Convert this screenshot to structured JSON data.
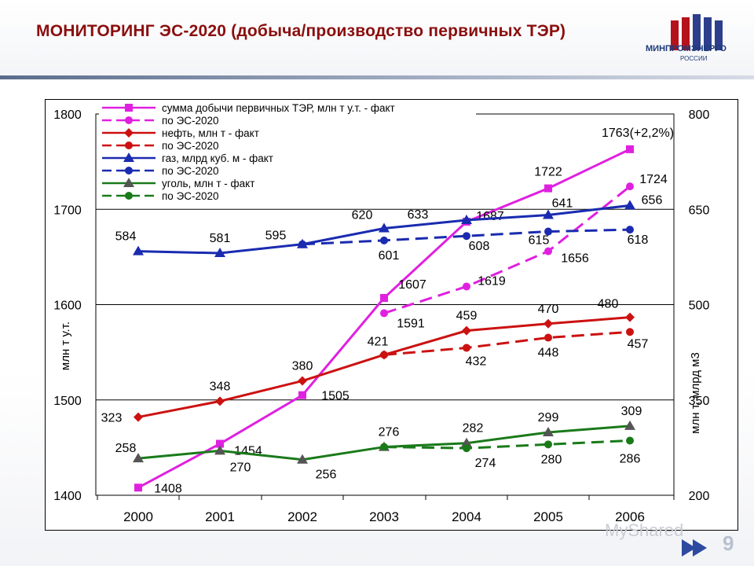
{
  "header": {
    "title": "МОНИТОРИНГ ЭС-2020 (добыча/производство первичных ТЭР)",
    "logo_text": "МИНПРОМЭНЕРГО",
    "logo_sub": "РОССИИ",
    "logo_icon": "building-columns-icon"
  },
  "footer": {
    "page_number": "9",
    "watermark": "MyShared"
  },
  "colors": {
    "title": "#8b0e0e",
    "sum": "#e020e0",
    "oil": "#cc1111",
    "gas": "#1a2bb0",
    "coal": "#1a7a1a"
  },
  "chart_data": {
    "type": "line",
    "categories": [
      "2000",
      "2001",
      "2002",
      "2003",
      "2004",
      "2005",
      "2006"
    ],
    "y_left": {
      "label": "млн т у.т.",
      "ylim": [
        1400,
        1800
      ],
      "ticks": [
        "1400",
        "1500",
        "1600",
        "1700",
        "1800"
      ]
    },
    "y_right": {
      "label": "млн т, млрд м3",
      "ylim": [
        200,
        800
      ],
      "ticks": [
        "200",
        "350",
        "500",
        "650",
        "800"
      ]
    },
    "grid": true,
    "legend_position": "top-left",
    "series": [
      {
        "name": "сумма добычи первичных ТЭР, млн т у.т. - факт",
        "axis": "left",
        "dash": false,
        "marker": "square",
        "color": "#e020e0",
        "values": [
          1408,
          1454,
          1505,
          1607,
          1687,
          1722,
          1763
        ],
        "labels": [
          "1408",
          "1454",
          "1505",
          "1607",
          "1687",
          "1722",
          "1763(+2,2%)"
        ]
      },
      {
        "name": "по ЭС-2020",
        "axis": "left",
        "dash": true,
        "marker": "circle",
        "color": "#e020e0",
        "values": [
          null,
          null,
          null,
          1591,
          1619,
          1656,
          1724
        ],
        "labels": [
          "",
          "",
          "",
          "1591",
          "1619",
          "1656",
          "1724"
        ]
      },
      {
        "name": "нефть, млн т - факт",
        "axis": "right",
        "dash": false,
        "marker": "diamond",
        "color": "#cc1111",
        "values": [
          323,
          348,
          380,
          421,
          459,
          470,
          480
        ],
        "labels": [
          "323",
          "348",
          "380",
          "421",
          "459",
          "470",
          "480"
        ]
      },
      {
        "name": "по ЭС-2020",
        "axis": "right",
        "dash": true,
        "marker": "circle",
        "color": "#cc1111",
        "values": [
          null,
          null,
          null,
          421,
          432,
          448,
          457
        ],
        "labels": [
          "",
          "",
          "",
          "",
          "432",
          "448",
          "457"
        ]
      },
      {
        "name": "газ, млрд куб. м - факт",
        "axis": "right",
        "dash": false,
        "marker": "triangle",
        "color": "#1a2bb0",
        "values": [
          584,
          581,
          595,
          620,
          633,
          641,
          656
        ],
        "labels": [
          "584",
          "581",
          "595",
          "620",
          "633",
          "641",
          "656"
        ]
      },
      {
        "name": "по ЭС-2020",
        "axis": "right",
        "dash": true,
        "marker": "circle",
        "color": "#1a2bb0",
        "values": [
          null,
          null,
          595,
          601,
          608,
          615,
          618
        ],
        "labels": [
          "",
          "",
          "",
          "601",
          "608",
          "615",
          "618"
        ]
      },
      {
        "name": "уголь, млн т - факт",
        "axis": "right",
        "dash": false,
        "marker": "triangle-grey",
        "color": "#1a7a1a",
        "values": [
          258,
          270,
          256,
          276,
          282,
          299,
          309
        ],
        "labels": [
          "258",
          "270",
          "256",
          "276",
          "282",
          "299",
          "309"
        ]
      },
      {
        "name": "по ЭС-2020",
        "axis": "right",
        "dash": true,
        "marker": "circle",
        "color": "#1a7a1a",
        "values": [
          null,
          null,
          null,
          276,
          274,
          280,
          286
        ],
        "labels": [
          "",
          "",
          "",
          "",
          "274",
          "280",
          "286"
        ]
      }
    ]
  }
}
